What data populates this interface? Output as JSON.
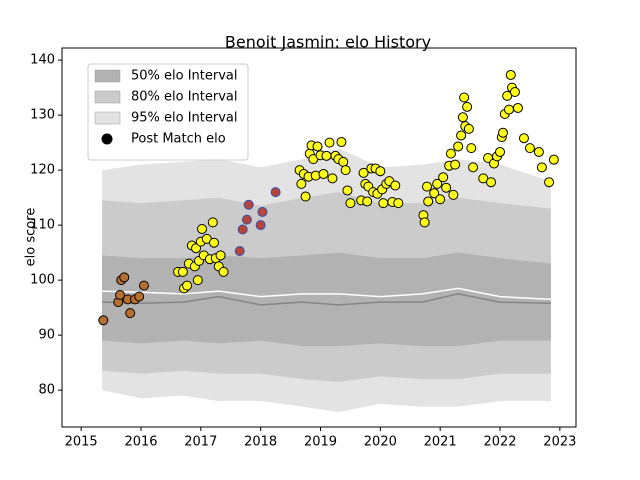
{
  "chart_data": {
    "type": "interval_scatter",
    "title": "Benoit Jasmin: elo History",
    "ylabel": "elo score",
    "xlim": [
      2014.68,
      2023.27
    ],
    "ylim": [
      73.3,
      142.2
    ],
    "xticks": [
      2015,
      2016,
      2017,
      2018,
      2019,
      2020,
      2021,
      2022,
      2023
    ],
    "yticks": [
      80,
      90,
      100,
      110,
      120,
      130,
      140
    ],
    "legend": "upper left",
    "band_x": [
      2015.35,
      2016,
      2016.7,
      2017.3,
      2018,
      2018.7,
      2019.3,
      2020,
      2020.7,
      2021.3,
      2022,
      2022.85
    ],
    "bands": [
      {
        "name": "95% elo Interval",
        "color": "#e3e3e3",
        "upper": [
          120,
          121,
          121.5,
          122,
          120.5,
          122,
          124,
          120.5,
          121,
          122,
          121,
          118
        ],
        "lower": [
          80,
          78.5,
          79,
          78,
          78,
          77,
          76,
          77.5,
          77,
          77,
          78,
          78
        ]
      },
      {
        "name": "80% elo Interval",
        "color": "#cbcbcb",
        "upper": [
          114.5,
          114,
          114.5,
          115,
          113.5,
          115,
          116,
          114,
          114,
          115,
          114,
          113
        ],
        "lower": [
          83.5,
          83,
          83.5,
          83,
          83,
          82,
          81.5,
          82.5,
          82,
          82,
          83,
          83
        ]
      },
      {
        "name": "50% elo Interval",
        "color": "#b2b2b2",
        "upper": [
          104.5,
          104,
          104,
          104.5,
          104,
          104.5,
          105,
          104,
          104,
          105,
          104,
          103
        ],
        "lower": [
          89,
          88.5,
          89,
          88.5,
          89,
          88,
          88,
          88.5,
          88,
          88,
          89,
          89
        ]
      }
    ],
    "lines": [
      {
        "color": "#ffffff",
        "values": [
          98,
          97.8,
          97.5,
          98,
          97,
          97.5,
          97.5,
          97,
          97.5,
          98.5,
          97,
          96.5
        ]
      },
      {
        "color": "#858585",
        "values": [
          96,
          95.8,
          96,
          97,
          95.5,
          96,
          95.5,
          96,
          96,
          97.5,
          96,
          95.8
        ]
      }
    ],
    "points": {
      "name": "Post Match elo",
      "color": "#000000",
      "groups": [
        {
          "color": "#b5702f",
          "edge_color": "#000000",
          "x": [
            2015.37,
            2015.62,
            2015.65,
            2015.67,
            2015.72,
            2015.78,
            2015.82,
            2015.9,
            2015.97,
            2016.05
          ],
          "values": [
            92.7,
            96,
            97.3,
            100,
            100.5,
            96.5,
            94,
            96.5,
            97,
            99
          ]
        },
        {
          "color": "#b8453a",
          "edge_color": "#3050b0",
          "x": [
            2017.65,
            2017.7,
            2017.77,
            2017.8,
            2018.0,
            2018.03,
            2018.25
          ],
          "values": [
            105.3,
            109.2,
            111,
            113.7,
            110,
            112.4,
            116
          ]
        },
        {
          "color": "#ffff1a",
          "edge_color": "#000000",
          "x": [
            2016.62,
            2016.7,
            2016.72,
            2016.77,
            2016.8,
            2016.85,
            2016.9,
            2016.92,
            2016.95,
            2016.97,
            2017.0,
            2017.02,
            2017.05,
            2017.1,
            2017.15,
            2017.2,
            2017.22,
            2017.25,
            2017.3,
            2017.33,
            2017.38,
            2018.65,
            2018.68,
            2018.72,
            2018.75,
            2018.8,
            2018.82,
            2018.85,
            2018.88,
            2018.92,
            2018.95,
            2019.0,
            2019.05,
            2019.1,
            2019.15,
            2019.2,
            2019.25,
            2019.3,
            2019.35,
            2019.38,
            2019.42,
            2019.45,
            2019.5,
            2019.68,
            2019.72,
            2019.75,
            2019.78,
            2019.8,
            2019.85,
            2019.88,
            2019.92,
            2019.95,
            2020.0,
            2020.03,
            2020.05,
            2020.1,
            2020.15,
            2020.2,
            2020.25,
            2020.3,
            2020.72,
            2020.74,
            2020.78,
            2020.8,
            2020.9,
            2020.95,
            2021.0,
            2021.05,
            2021.1,
            2021.15,
            2021.18,
            2021.22,
            2021.25,
            2021.3,
            2021.35,
            2021.38,
            2021.4,
            2021.42,
            2021.45,
            2021.48,
            2021.52,
            2021.55,
            2021.72,
            2021.8,
            2021.85,
            2021.9,
            2021.95,
            2022.0,
            2022.03,
            2022.05,
            2022.08,
            2022.12,
            2022.15,
            2022.18,
            2022.2,
            2022.25,
            2022.3,
            2022.4,
            2022.5,
            2022.65,
            2022.7,
            2022.82,
            2022.9
          ],
          "values": [
            101.5,
            101.5,
            98.5,
            99,
            103,
            106.3,
            102.5,
            105.8,
            100,
            103.5,
            107,
            109.3,
            104.5,
            107.5,
            103.8,
            110.5,
            106.8,
            104,
            102.5,
            104.5,
            101.5,
            120,
            117.5,
            119.3,
            115.2,
            118.8,
            123,
            124.5,
            122,
            119,
            124.3,
            122.7,
            119.3,
            122.6,
            125,
            118.5,
            122.6,
            122,
            125.1,
            121.5,
            120,
            116.3,
            114,
            114.5,
            119.5,
            117.5,
            114.3,
            117,
            120.3,
            116,
            120.3,
            115.7,
            119.8,
            116.5,
            114,
            117.5,
            118,
            114.2,
            117.2,
            114,
            111.8,
            110.5,
            117,
            114.3,
            115.8,
            117.5,
            114.7,
            118.7,
            116.8,
            120.8,
            123,
            115.5,
            121,
            124.3,
            126.3,
            129.6,
            133.2,
            128,
            131.5,
            127.5,
            124,
            120.5,
            118.5,
            122.2,
            117.8,
            121.2,
            122.5,
            123.3,
            126,
            126.8,
            130.2,
            133.5,
            131,
            137.3,
            135,
            134.2,
            131.3,
            125.8,
            124,
            123.3,
            120.5,
            117.8,
            121.9
          ]
        }
      ]
    }
  }
}
